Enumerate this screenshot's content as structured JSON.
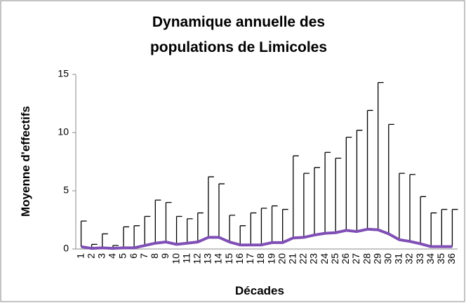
{
  "chart_data": {
    "type": "line",
    "title": [
      "Dynamique annuelle des",
      "populations de Limicoles"
    ],
    "x_label": "Décades",
    "y_label": "Moyenne d'effectifs",
    "categories": [
      "1",
      "2",
      "3",
      "4",
      "5",
      "6",
      "7",
      "8",
      "9",
      "10",
      "11",
      "12",
      "13",
      "14",
      "15",
      "16",
      "17",
      "18",
      "19",
      "20",
      "21",
      "22",
      "23",
      "24",
      "25",
      "26",
      "27",
      "28",
      "29",
      "30",
      "31",
      "32",
      "33",
      "34",
      "35",
      "36"
    ],
    "series": [
      {
        "color": "#7f4fb5",
        "values": [
          0.2,
          0.05,
          0.1,
          0.05,
          0.1,
          0.1,
          0.3,
          0.5,
          0.6,
          0.4,
          0.5,
          0.6,
          1.0,
          1.0,
          0.6,
          0.35,
          0.35,
          0.35,
          0.55,
          0.55,
          0.95,
          1.0,
          1.2,
          1.35,
          1.4,
          1.6,
          1.5,
          1.7,
          1.65,
          1.3,
          0.8,
          0.65,
          0.45,
          0.2,
          0.2,
          0.2
        ],
        "errors": [
          2.2,
          0.35,
          1.2,
          0.25,
          1.8,
          1.9,
          2.5,
          3.7,
          3.4,
          2.4,
          2.1,
          2.5,
          5.2,
          4.6,
          2.3,
          1.65,
          2.75,
          3.15,
          3.15,
          2.85,
          7.05,
          5.5,
          5.8,
          6.95,
          6.4,
          8.0,
          8.7,
          10.2,
          12.65,
          9.4,
          5.7,
          5.75,
          4.05,
          2.9,
          3.2,
          3.2
        ]
      }
    ],
    "ylim": [
      0,
      15
    ],
    "yticks": [
      0,
      5,
      10,
      15
    ]
  }
}
